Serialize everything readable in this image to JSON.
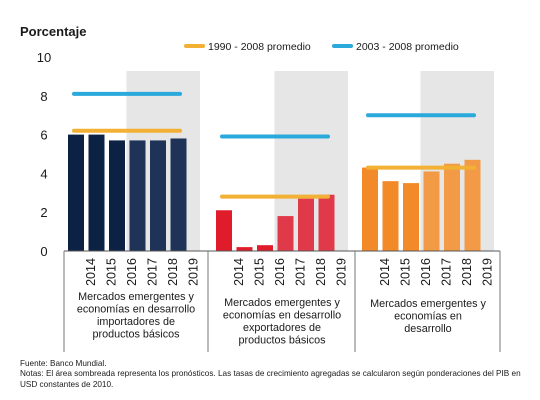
{
  "chart_data": {
    "type": "bar",
    "ylabel": "Porcentaje",
    "ylim": [
      0,
      10
    ],
    "yticks": [
      0,
      2,
      4,
      6,
      8,
      10
    ],
    "grid": false,
    "legend_position": "top-right",
    "forecast_years": [
      "2017",
      "2018",
      "2019"
    ],
    "legend": [
      {
        "label": "1990 - 2008 promedio",
        "color": "#f2b134"
      },
      {
        "label": "2003 - 2008 promedio",
        "color": "#2aa9dc"
      }
    ],
    "groups": [
      {
        "label": "Mercados emergentes y economías en desarrollo importadores de productos básicos",
        "label_lines": [
          "Mercados emergentes y",
          "economías en desarrollo",
          "importadores de",
          "productos básicos"
        ],
        "color": "#0b2244",
        "forecast_color": "#1f3358",
        "categories": [
          "2014",
          "2015",
          "2016",
          "2017",
          "2018",
          "2019"
        ],
        "values": [
          6.0,
          6.0,
          5.7,
          5.7,
          5.7,
          5.8
        ],
        "avg_1990_2008": 6.2,
        "avg_2003_2008": 8.1
      },
      {
        "label": "Mercados emergentes y economías en desarrollo exportadores de productos básicos",
        "label_lines": [
          "Mercados emergentes y",
          "economías en desarrollo",
          "exportadores de",
          "productos básicos"
        ],
        "color": "#e01b2a",
        "forecast_color": "#e0394a",
        "categories": [
          "2014",
          "2015",
          "2016",
          "2017",
          "2018",
          "2019"
        ],
        "values": [
          2.1,
          0.2,
          0.3,
          1.8,
          2.7,
          2.9
        ],
        "avg_1990_2008": 2.8,
        "avg_2003_2008": 5.9
      },
      {
        "label": "Mercados emergentes y economías en desarrollo",
        "label_lines": [
          "Mercados emergentes y",
          "economías en",
          "desarrollo"
        ],
        "color": "#f28a2a",
        "forecast_color": "#f29a45",
        "categories": [
          "2014",
          "2015",
          "2016",
          "2017",
          "2018",
          "2019"
        ],
        "values": [
          4.3,
          3.6,
          3.5,
          4.1,
          4.5,
          4.7
        ],
        "avg_1990_2008": 4.3,
        "avg_2003_2008": 7.0
      }
    ]
  },
  "footnotes": {
    "source": "Fuente: Banco Mundial.",
    "notes": "Notas: El área sombreada representa los pronósticos. Las tasas de crecimiento agregadas se calcularon según ponderaciones del PIB en USD constantes de 2010."
  }
}
